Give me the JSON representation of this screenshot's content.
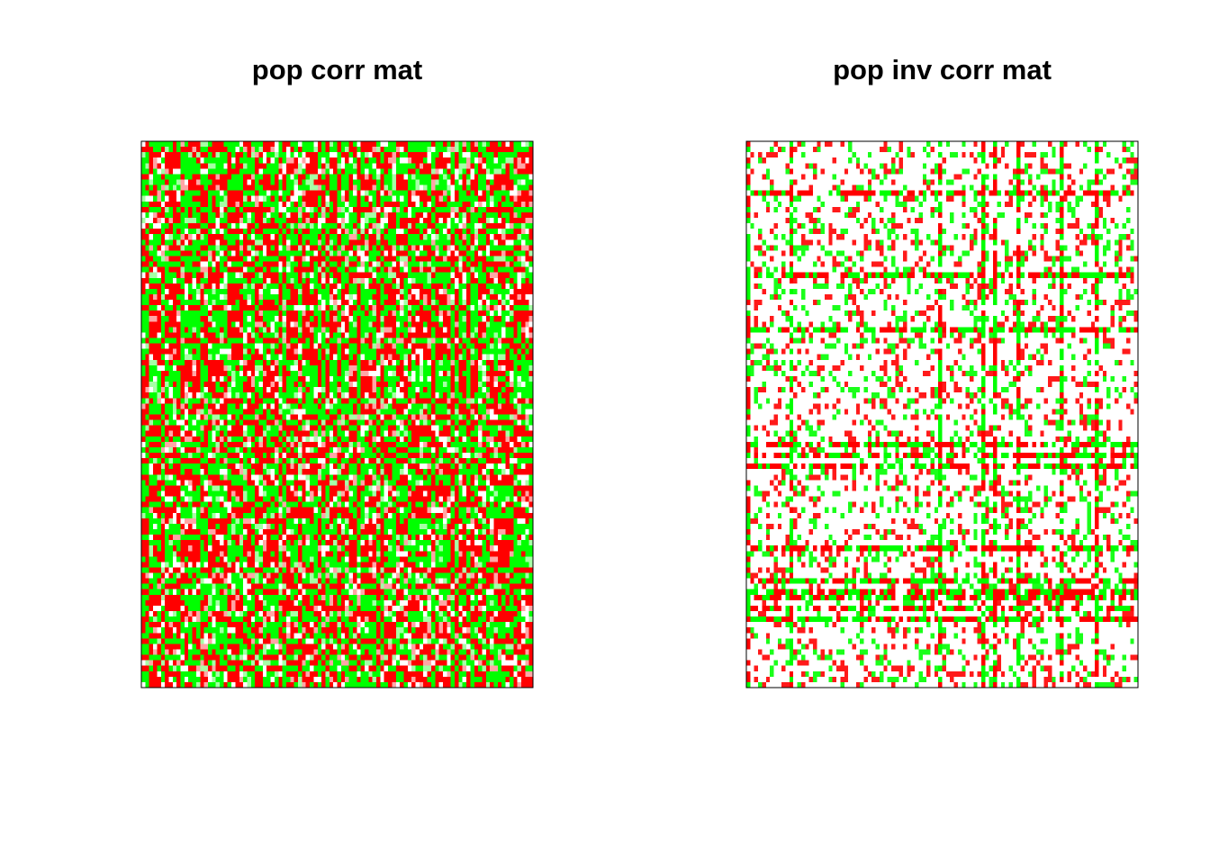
{
  "chart_data": [
    {
      "type": "heatmap",
      "title": "pop corr mat",
      "xlabel": "",
      "ylabel": "",
      "grid": false,
      "legend": false,
      "axes_ticks": false,
      "matrix_size": [
        100,
        100
      ],
      "colors": {
        "negative": "#ff0000",
        "zero": "#ffffff",
        "positive": "#00ff00",
        "frame": "#000000"
      },
      "color_scale": "diverging red-white-green",
      "value_range": [
        -1,
        1
      ],
      "dominant_colors": [
        "#ff0000",
        "#00ff00"
      ],
      "visible_light_cells": true
    },
    {
      "type": "heatmap",
      "title": "pop inv corr mat",
      "xlabel": "",
      "ylabel": "",
      "grid": false,
      "legend": false,
      "axes_ticks": false,
      "matrix_size": [
        100,
        100
      ],
      "colors": {
        "negative": "#ff0000",
        "zero": "#ffffff",
        "positive": "#00ff00",
        "frame": "#000000"
      },
      "color_scale": "diverging red-white-green",
      "value_range": [
        -1,
        1
      ],
      "dominant_colors": [
        "#ffffff",
        "#ff0000",
        "#00ff00"
      ],
      "visible_light_cells": true
    }
  ]
}
